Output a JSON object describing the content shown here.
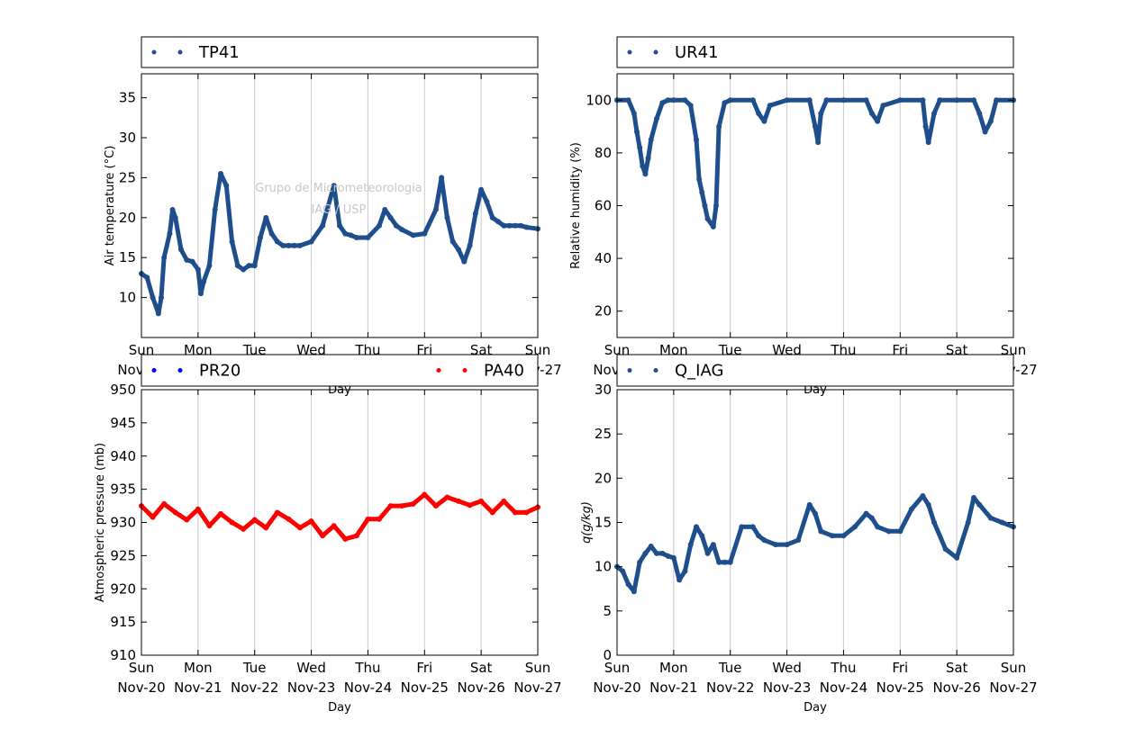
{
  "watermark": {
    "line1": "Grupo de Micrometeorologia",
    "line2": "IAG / USP"
  },
  "x_ticks": {
    "days": [
      "Sun",
      "Mon",
      "Tue",
      "Wed",
      "Thu",
      "Fri",
      "Sat",
      "Sun"
    ],
    "dates": [
      "Nov-20",
      "Nov-21",
      "Nov-22",
      "Nov-23",
      "Nov-24",
      "Nov-25",
      "Nov-26",
      "Nov-27"
    ]
  },
  "chart_data": [
    {
      "type": "scatter",
      "ylabel": "Air temperature (°C)",
      "xlabel": "Day",
      "xlim": [
        "Nov-20",
        "Nov-27"
      ],
      "ylim": [
        5,
        38
      ],
      "yticks": [
        10,
        15,
        20,
        25,
        30,
        35
      ],
      "grid": "vertical",
      "legend_position": "top",
      "series": [
        {
          "name": "TP41",
          "color": "#1f4e8c",
          "x": [
            0,
            0.1,
            0.2,
            0.3,
            0.35,
            0.4,
            0.5,
            0.55,
            0.6,
            0.7,
            0.8,
            0.9,
            1.0,
            1.05,
            1.1,
            1.2,
            1.3,
            1.4,
            1.5,
            1.6,
            1.7,
            1.8,
            1.9,
            2.0,
            2.1,
            2.2,
            2.3,
            2.4,
            2.5,
            2.6,
            2.7,
            2.8,
            3.0,
            3.2,
            3.4,
            3.5,
            3.6,
            3.7,
            3.8,
            4.0,
            4.2,
            4.3,
            4.4,
            4.5,
            4.6,
            4.8,
            5.0,
            5.2,
            5.3,
            5.4,
            5.5,
            5.6,
            5.7,
            5.8,
            5.9,
            6.0,
            6.1,
            6.2,
            6.3,
            6.4,
            6.5,
            6.6,
            6.7,
            6.8,
            7.0
          ],
          "y": [
            13,
            12.5,
            10,
            8,
            10,
            15,
            18,
            21,
            20,
            16,
            14.7,
            14.5,
            13.5,
            10.5,
            12,
            14,
            21,
            25.5,
            24,
            17,
            14,
            13.5,
            14,
            14,
            17.5,
            20,
            18,
            17,
            16.5,
            16.5,
            16.5,
            16.5,
            17,
            19,
            24,
            19,
            18,
            17.8,
            17.5,
            17.5,
            19,
            21,
            20,
            19,
            18.5,
            17.8,
            18,
            21,
            25,
            20,
            17,
            16,
            14.5,
            16.5,
            20.5,
            23.5,
            22,
            20,
            19.5,
            19,
            19,
            19,
            19,
            18.8,
            18.6
          ]
        }
      ]
    },
    {
      "type": "scatter",
      "ylabel": "Relative humidity (%)",
      "xlabel": "Day",
      "xlim": [
        "Nov-20",
        "Nov-27"
      ],
      "ylim": [
        10,
        110
      ],
      "yticks": [
        20,
        40,
        60,
        80,
        100
      ],
      "grid": "vertical",
      "legend_position": "top",
      "series": [
        {
          "name": "UR41",
          "color": "#1f4e8c",
          "x": [
            0,
            0.2,
            0.3,
            0.35,
            0.4,
            0.45,
            0.5,
            0.55,
            0.6,
            0.7,
            0.8,
            0.9,
            1.0,
            1.2,
            1.3,
            1.4,
            1.45,
            1.5,
            1.55,
            1.6,
            1.7,
            1.75,
            1.8,
            1.9,
            2.0,
            2.4,
            2.5,
            2.6,
            2.7,
            3.0,
            3.4,
            3.5,
            3.55,
            3.6,
            3.7,
            4.0,
            4.4,
            4.5,
            4.6,
            4.7,
            5.0,
            5.4,
            5.45,
            5.5,
            5.6,
            5.7,
            6.0,
            6.3,
            6.4,
            6.5,
            6.6,
            6.7,
            7.0
          ],
          "y": [
            100,
            100,
            95,
            88,
            82,
            75,
            72,
            78,
            85,
            93,
            99,
            100,
            100,
            100,
            98,
            85,
            70,
            65,
            60,
            55,
            52,
            60,
            90,
            99,
            100,
            100,
            95,
            92,
            98,
            100,
            100,
            90,
            84,
            95,
            100,
            100,
            100,
            95,
            92,
            98,
            100,
            100,
            90,
            84,
            95,
            100,
            100,
            100,
            95,
            88,
            92,
            100,
            100
          ]
        }
      ]
    },
    {
      "type": "scatter",
      "ylabel": "Atmospheric pressure (mb)",
      "xlabel": "Day",
      "xlim": [
        "Nov-20",
        "Nov-27"
      ],
      "ylim": [
        910,
        950
      ],
      "yticks": [
        910,
        915,
        920,
        925,
        930,
        935,
        940,
        945,
        950
      ],
      "grid": "vertical",
      "legend_position": "top",
      "series": [
        {
          "name": "PR20",
          "color": "#0000ff",
          "x": [],
          "y": []
        },
        {
          "name": "PA40",
          "color": "#ff0000",
          "x": [
            0,
            0.2,
            0.4,
            0.6,
            0.8,
            1.0,
            1.2,
            1.4,
            1.6,
            1.8,
            2.0,
            2.2,
            2.4,
            2.6,
            2.8,
            3.0,
            3.2,
            3.4,
            3.6,
            3.8,
            4.0,
            4.2,
            4.4,
            4.6,
            4.8,
            5.0,
            5.2,
            5.4,
            5.6,
            5.8,
            6.0,
            6.2,
            6.4,
            6.6,
            6.8,
            7.0
          ],
          "y": [
            932.5,
            930.8,
            932.8,
            931.5,
            930.4,
            932,
            929.5,
            931.3,
            930,
            929,
            930.4,
            929.2,
            931.5,
            930.5,
            929.2,
            930.2,
            928,
            929.5,
            927.5,
            928,
            930.5,
            930.5,
            932.5,
            932.5,
            932.8,
            934.2,
            932.5,
            933.8,
            933.2,
            932.6,
            933.2,
            931.5,
            933.2,
            931.5,
            931.5,
            932.3
          ]
        }
      ]
    },
    {
      "type": "scatter",
      "ylabel": "q(g/kg)",
      "xlabel": "Day",
      "xlim": [
        "Nov-20",
        "Nov-27"
      ],
      "ylim": [
        0,
        30
      ],
      "yticks": [
        0,
        5,
        10,
        15,
        20,
        25,
        30
      ],
      "grid": "vertical",
      "legend_position": "top",
      "series": [
        {
          "name": "Q_IAG",
          "color": "#1f4e8c",
          "x": [
            0,
            0.1,
            0.2,
            0.3,
            0.4,
            0.5,
            0.6,
            0.7,
            0.8,
            0.9,
            1.0,
            1.1,
            1.2,
            1.3,
            1.4,
            1.5,
            1.6,
            1.7,
            1.8,
            1.9,
            2.0,
            2.2,
            2.4,
            2.5,
            2.6,
            2.8,
            3.0,
            3.2,
            3.4,
            3.5,
            3.6,
            3.8,
            4.0,
            4.2,
            4.4,
            4.5,
            4.6,
            4.8,
            5.0,
            5.2,
            5.4,
            5.5,
            5.6,
            5.8,
            6.0,
            6.2,
            6.3,
            6.4,
            6.6,
            6.8,
            7.0
          ],
          "y": [
            10,
            9.5,
            8,
            7.2,
            10.5,
            11.5,
            12.3,
            11.5,
            11.5,
            11.2,
            11,
            8.5,
            9.5,
            12.5,
            14.5,
            13.5,
            11.5,
            12.5,
            10.5,
            10.5,
            10.5,
            14.5,
            14.5,
            13.5,
            13,
            12.5,
            12.5,
            13,
            17,
            16,
            14,
            13.5,
            13.5,
            14.5,
            16,
            15.5,
            14.5,
            14,
            14,
            16.5,
            18,
            17,
            15,
            12,
            11,
            15,
            17.8,
            17,
            15.5,
            15,
            14.5
          ]
        }
      ]
    }
  ]
}
